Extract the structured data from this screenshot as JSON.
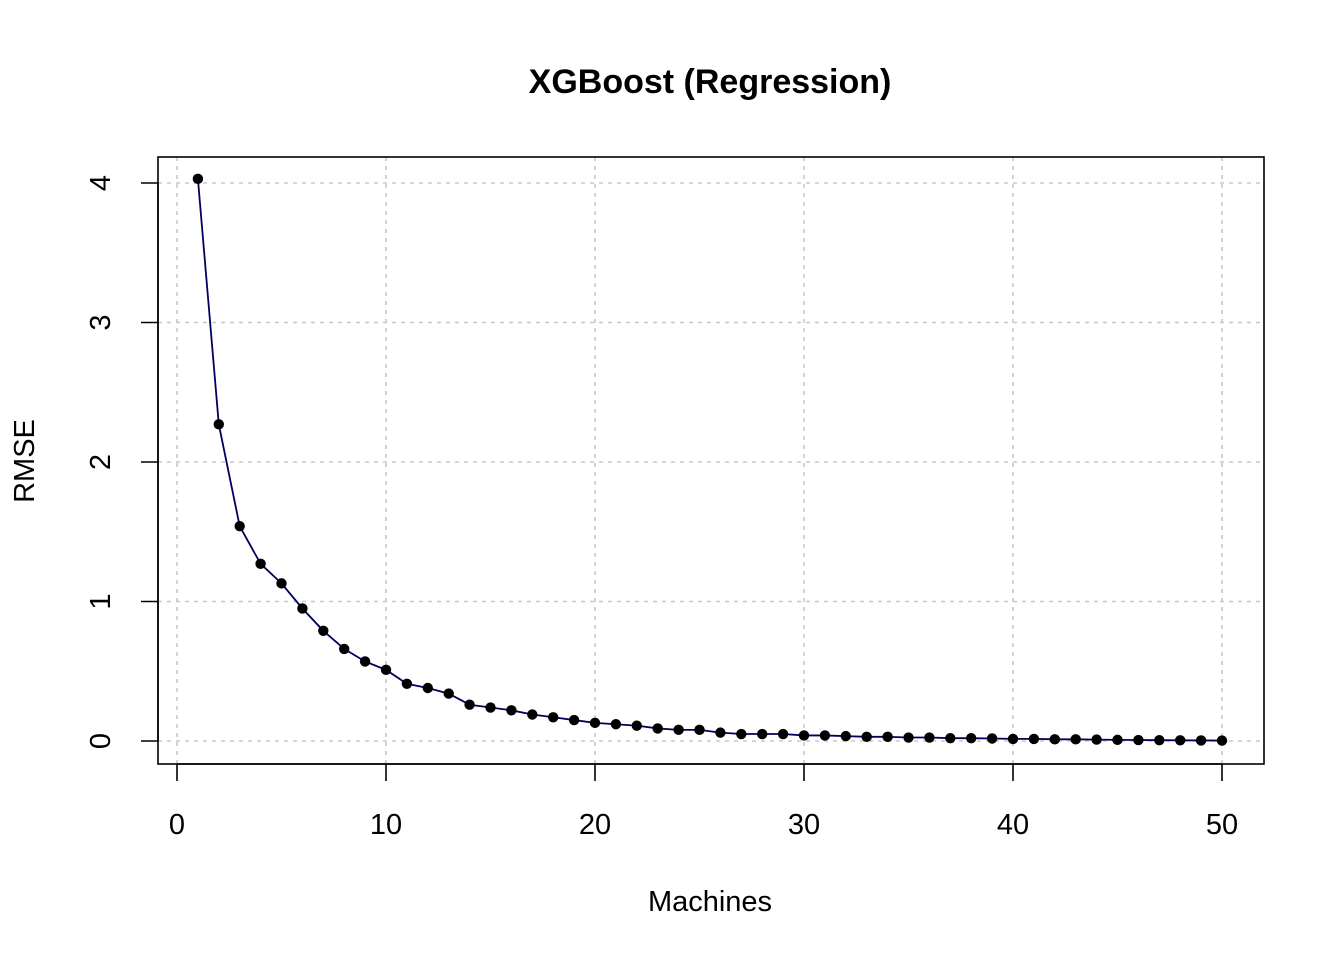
{
  "chart_data": {
    "type": "line",
    "title": "XGBoost (Regression)",
    "xlabel": "Machines",
    "ylabel": "RMSE",
    "xlim": [
      0,
      50
    ],
    "ylim": [
      0,
      4
    ],
    "xticks": [
      0,
      10,
      20,
      30,
      40,
      50
    ],
    "yticks": [
      0,
      1,
      2,
      3,
      4
    ],
    "grid": true,
    "legend": "none",
    "line_color": "#00005f",
    "point_color": "#000000",
    "series": [
      {
        "x": [
          1,
          2,
          3,
          4,
          5,
          6,
          7,
          8,
          9,
          10,
          11,
          12,
          13,
          14,
          15,
          16,
          17,
          18,
          19,
          20,
          21,
          22,
          23,
          24,
          25,
          26,
          27,
          28,
          29,
          30,
          31,
          32,
          33,
          34,
          35,
          36,
          37,
          38,
          39,
          40,
          41,
          42,
          43,
          44,
          45,
          46,
          47,
          48,
          49,
          50
        ],
        "values": [
          4.03,
          2.27,
          1.54,
          1.27,
          1.13,
          0.95,
          0.79,
          0.66,
          0.57,
          0.51,
          0.41,
          0.38,
          0.34,
          0.26,
          0.24,
          0.22,
          0.19,
          0.17,
          0.15,
          0.13,
          0.12,
          0.11,
          0.09,
          0.08,
          0.08,
          0.06,
          0.05,
          0.05,
          0.05,
          0.04,
          0.04,
          0.035,
          0.03,
          0.03,
          0.025,
          0.025,
          0.02,
          0.02,
          0.018,
          0.015,
          0.015,
          0.012,
          0.012,
          0.01,
          0.008,
          0.007,
          0.006,
          0.005,
          0.004,
          0.003
        ]
      }
    ]
  }
}
